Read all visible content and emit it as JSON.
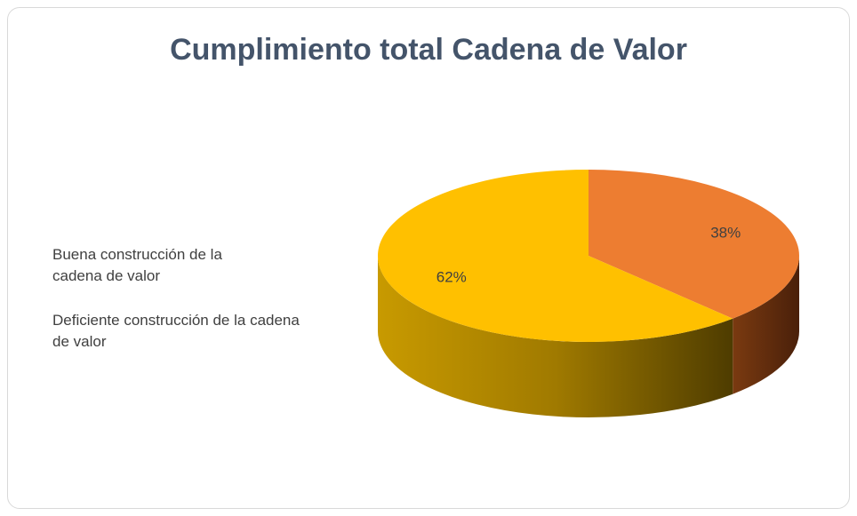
{
  "chart_data": {
    "type": "pie3d",
    "title": "Cumplimiento total Cadena de Valor",
    "categories": [
      "Buena construcción de la cadena de valor",
      "Deficiente construcción de la cadena de valor"
    ],
    "values": [
      38,
      62
    ],
    "value_labels": [
      "38%",
      "62%"
    ],
    "colors": [
      "#ED7D31",
      "#FFC000"
    ]
  }
}
